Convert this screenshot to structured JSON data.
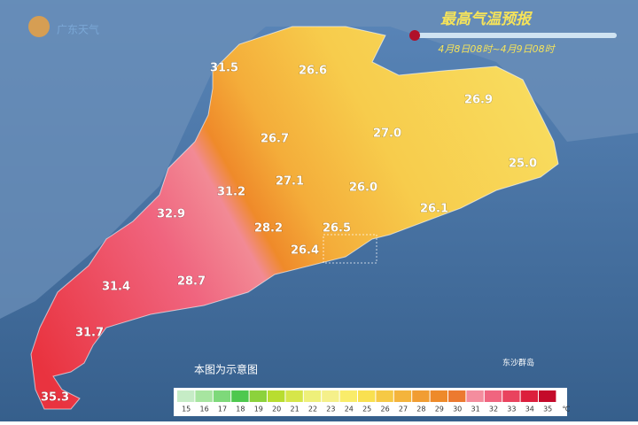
{
  "header": {
    "logo": "广东天气",
    "title": "最高气温预报",
    "subtitle": "4月8日08时~4月9日08时"
  },
  "labels": [
    "31.5",
    "26.6",
    "26.9",
    "26.7",
    "27.0",
    "25.0",
    "31.2",
    "27.1",
    "26.0",
    "32.9",
    "26.1",
    "28.2",
    "26.5",
    "26.4",
    "28.7",
    "31.4",
    "31.7",
    "35.3"
  ],
  "note": "本图为示意图",
  "island": "东沙群岛",
  "legend": {
    "ticks": [
      15,
      16,
      17,
      18,
      19,
      20,
      21,
      22,
      23,
      24,
      25,
      26,
      27,
      28,
      29,
      30,
      31,
      32,
      33,
      34,
      35
    ],
    "colors": [
      "#c6ecc6",
      "#a7e5a0",
      "#7ed97a",
      "#4ec84e",
      "#8cd23c",
      "#b8dd30",
      "#d6e64a",
      "#eef07a",
      "#f5f08a",
      "#f9ec6a",
      "#f9e050",
      "#f6c945",
      "#f4b43c",
      "#f19d33",
      "#ee8a2a",
      "#ec7a30",
      "#f48d9e",
      "#f0657f",
      "#e9435e",
      "#dc1f3c",
      "#c40a2a"
    ],
    "unit": "℃"
  }
}
